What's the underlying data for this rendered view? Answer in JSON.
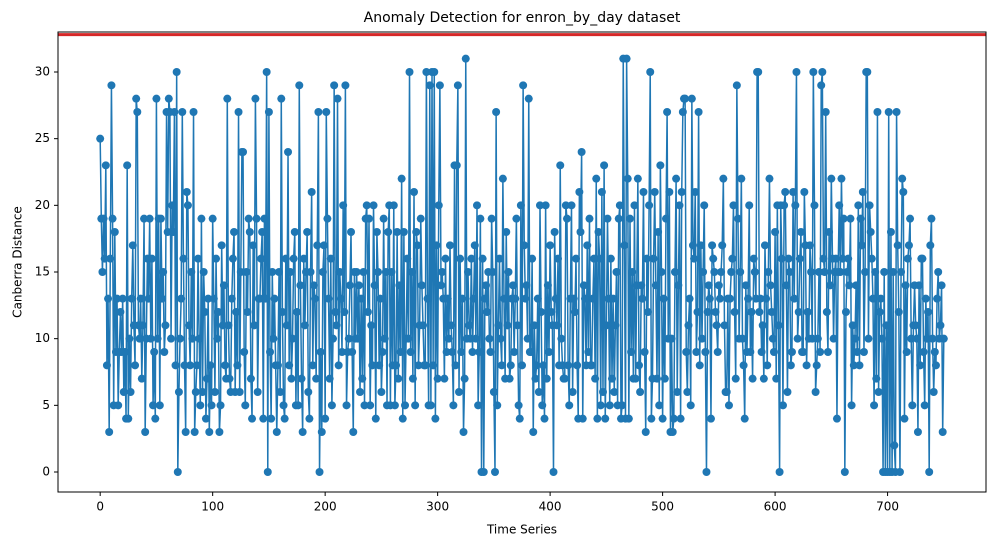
{
  "chart_data": {
    "type": "line",
    "title": "Anomaly Detection for enron_by_day dataset",
    "x_label": "Time Series",
    "y_label": "Canberra Distance",
    "x": [
      0,
      1,
      2,
      3,
      4,
      5,
      6,
      7,
      8,
      9,
      10,
      11,
      12,
      13,
      14,
      15,
      16,
      17,
      18,
      19,
      20,
      21,
      22,
      23,
      24,
      25,
      26,
      27,
      28,
      29,
      30,
      31,
      32,
      33,
      34,
      35,
      36,
      37,
      38,
      39,
      40,
      41,
      42,
      43,
      44,
      45,
      46,
      47,
      48,
      49,
      50,
      51,
      52,
      53,
      54,
      55,
      56,
      57,
      58,
      59,
      60,
      61,
      62,
      63,
      64,
      65,
      66,
      67,
      68,
      69,
      70,
      71,
      72,
      73,
      74,
      75,
      76,
      77,
      78,
      79,
      80,
      81,
      82,
      83,
      84,
      85,
      86,
      87,
      88,
      89,
      90,
      91,
      92,
      93,
      94,
      95,
      96,
      97,
      98,
      99,
      100,
      101,
      102,
      103,
      104,
      105,
      106,
      107,
      108,
      109,
      110,
      111,
      112,
      113,
      114,
      115,
      116,
      117,
      118,
      119,
      120,
      121,
      122,
      123,
      124,
      125,
      126,
      127,
      128,
      129,
      130,
      131,
      132,
      133,
      134,
      135,
      136,
      137,
      138,
      139,
      140,
      141,
      142,
      143,
      144,
      145,
      146,
      147,
      148,
      149,
      150,
      151,
      152,
      153,
      154,
      155,
      156,
      157,
      158,
      159,
      160,
      161,
      162,
      163,
      164,
      165,
      166,
      167,
      168,
      169,
      170,
      171,
      172,
      173,
      174,
      175,
      176,
      177,
      178,
      179,
      180,
      181,
      182,
      183,
      184,
      185,
      186,
      187,
      188,
      189,
      190,
      191,
      192,
      193,
      194,
      195,
      196,
      197,
      198,
      199,
      200,
      201,
      202,
      203,
      204,
      205,
      206,
      207,
      208,
      209,
      210,
      211,
      212,
      213,
      214,
      215,
      216,
      217,
      218,
      219,
      220,
      221,
      222,
      223,
      224,
      225,
      226,
      227,
      228,
      229,
      230,
      231,
      232,
      233,
      234,
      235,
      236,
      237,
      238,
      239,
      240,
      241,
      242,
      243,
      244,
      245,
      246,
      247,
      248,
      249,
      250,
      251,
      252,
      253,
      254,
      255,
      256,
      257,
      258,
      259,
      260,
      261,
      262,
      263,
      264,
      265,
      266,
      267,
      268,
      269,
      270,
      271,
      272,
      273,
      274,
      275,
      276,
      277,
      278,
      279,
      280,
      281,
      282,
      283,
      284,
      285,
      286,
      287,
      288,
      289,
      290,
      291,
      292,
      293,
      294,
      295,
      296,
      297,
      298,
      299,
      300,
      301,
      302,
      303,
      304,
      305,
      306,
      307,
      308,
      309,
      310,
      311,
      312,
      313,
      314,
      315,
      316,
      317,
      318,
      319,
      320,
      321,
      322,
      323,
      324,
      325,
      326,
      327,
      328,
      329,
      330,
      331,
      332,
      333,
      334,
      335,
      336,
      337,
      338,
      339,
      340,
      341,
      342,
      343,
      344,
      345,
      346,
      347,
      348,
      349,
      350,
      351,
      352,
      353,
      354,
      355,
      356,
      357,
      358,
      359,
      360,
      361,
      362,
      363,
      364,
      365,
      366,
      367,
      368,
      369,
      370,
      371,
      372,
      373,
      374,
      375,
      376,
      377,
      378,
      379,
      380,
      381,
      382,
      383,
      384,
      385,
      386,
      387,
      388,
      389,
      390,
      391,
      392,
      393,
      394,
      395,
      396,
      397,
      398,
      399,
      400,
      401,
      402,
      403,
      404,
      405,
      406,
      407,
      408,
      409,
      410,
      411,
      412,
      413,
      414,
      415,
      416,
      417,
      418,
      419,
      420,
      421,
      422,
      423,
      424,
      425,
      426,
      427,
      428,
      429,
      430,
      431,
      432,
      433,
      434,
      435,
      436,
      437,
      438,
      439,
      440,
      441,
      442,
      443,
      444,
      445,
      446,
      447,
      448,
      449,
      450,
      451,
      452,
      453,
      454,
      455,
      456,
      457,
      458,
      459,
      460,
      461,
      462,
      463,
      464,
      465,
      466,
      467,
      468,
      469,
      470,
      471,
      472,
      473,
      474,
      475,
      476,
      477,
      478,
      479,
      480,
      481,
      482,
      483,
      484,
      485,
      486,
      487,
      488,
      489,
      490,
      491,
      492,
      493,
      494,
      495,
      496,
      497,
      498,
      499,
      500,
      501,
      502,
      503,
      504,
      505,
      506,
      507,
      508,
      509,
      510,
      511,
      512,
      513,
      514,
      515,
      516,
      517,
      518,
      519,
      520,
      521,
      522,
      523,
      524,
      525,
      526,
      527,
      528,
      529,
      530,
      531,
      532,
      533,
      534,
      535,
      536,
      537,
      538,
      539,
      540,
      541,
      542,
      543,
      544,
      545,
      546,
      547,
      548,
      549,
      550,
      551,
      552,
      553,
      554,
      555,
      556,
      557,
      558,
      559,
      560,
      561,
      562,
      563,
      564,
      565,
      566,
      567,
      568,
      569,
      570,
      571,
      572,
      573,
      574,
      575,
      576,
      577,
      578,
      579,
      580,
      581,
      582,
      583,
      584,
      585,
      586,
      587,
      588,
      589,
      590,
      591,
      592,
      593,
      594,
      595,
      596,
      597,
      598,
      599,
      600,
      601,
      602,
      603,
      604,
      605,
      606,
      607,
      608,
      609,
      610,
      611,
      612,
      613,
      614,
      615,
      616,
      617,
      618,
      619,
      620,
      621,
      622,
      623,
      624,
      625,
      626,
      627,
      628,
      629,
      630,
      631,
      632,
      633,
      634,
      635,
      636,
      637,
      638,
      639,
      640,
      641,
      642,
      643,
      644,
      645,
      646,
      647,
      648,
      649,
      650,
      651,
      652,
      653,
      654,
      655,
      656,
      657,
      658,
      659,
      660,
      661,
      662,
      663,
      664,
      665,
      666,
      667,
      668,
      669,
      670,
      671,
      672,
      673,
      674,
      675,
      676,
      677,
      678,
      679,
      680,
      681,
      682,
      683,
      684,
      685,
      686,
      687,
      688,
      689,
      690,
      691,
      692,
      693,
      694,
      695,
      696,
      697,
      698,
      699,
      700,
      701,
      702,
      703,
      704,
      705,
      706,
      707,
      708,
      709,
      710,
      711,
      712,
      713,
      714,
      715,
      716,
      717,
      718,
      719,
      720,
      721,
      722,
      723,
      724,
      725,
      726,
      727,
      728,
      729,
      730,
      731,
      732,
      733,
      734,
      735,
      736,
      737,
      738,
      739,
      740,
      741,
      742,
      743,
      744,
      745,
      746,
      747,
      748,
      749,
      750
    ],
    "series": [
      {
        "color": "#1f77b4",
        "values": [
          25,
          19,
          15,
          19,
          16,
          23,
          8,
          13,
          3,
          16,
          29,
          19,
          5,
          18,
          9,
          13,
          5,
          9,
          12,
          9,
          13,
          6,
          9,
          4,
          23,
          4,
          10,
          6,
          13,
          17,
          11,
          8,
          28,
          27,
          11,
          10,
          13,
          7,
          11,
          19,
          3,
          10,
          16,
          13,
          19,
          10,
          16,
          5,
          9,
          4,
          28,
          10,
          19,
          5,
          19,
          13,
          15,
          9,
          11,
          27,
          18,
          28,
          27,
          10,
          20,
          18,
          27,
          8,
          30,
          0,
          6,
          10,
          13,
          27,
          16,
          8,
          3,
          21,
          20,
          11,
          8,
          15,
          10,
          27,
          3,
          6,
          8,
          16,
          10,
          5,
          19,
          6,
          15,
          12,
          4,
          7,
          13,
          3,
          8,
          5,
          19,
          13,
          6,
          16,
          10,
          12,
          3,
          5,
          17,
          11,
          14,
          8,
          7,
          28,
          11,
          7,
          6,
          13,
          16,
          18,
          6,
          12,
          8,
          27,
          6,
          15,
          24,
          24,
          9,
          5,
          15,
          12,
          19,
          18,
          7,
          4,
          17,
          11,
          28,
          19,
          6,
          13,
          13,
          16,
          18,
          4,
          19,
          13,
          30,
          0,
          27,
          9,
          4,
          15,
          10,
          13,
          8,
          3,
          8,
          15,
          6,
          28,
          12,
          5,
          4,
          16,
          11,
          24,
          8,
          15,
          7,
          10,
          16,
          18,
          5,
          12,
          5,
          29,
          14,
          7,
          3,
          16,
          11,
          15,
          18,
          6,
          4,
          15,
          21,
          8,
          14,
          13,
          7,
          17,
          27,
          0,
          9,
          3,
          15,
          17,
          4,
          27,
          19,
          13,
          7,
          16,
          5,
          10,
          29,
          12,
          11,
          28,
          8,
          15,
          13,
          9,
          20,
          12,
          29,
          5,
          9,
          10,
          14,
          18,
          9,
          3,
          15,
          10,
          15,
          10,
          14,
          6,
          13,
          7,
          15,
          5,
          19,
          20,
          12,
          19,
          5,
          11,
          8,
          20,
          14,
          4,
          18,
          15,
          8,
          13,
          6,
          9,
          19,
          10,
          15,
          5,
          18,
          20,
          5,
          15,
          8,
          20,
          5,
          8,
          18,
          7,
          14,
          9,
          22,
          4,
          18,
          5,
          10,
          16,
          10,
          30,
          9,
          15,
          7,
          21,
          5,
          18,
          17,
          8,
          11,
          19,
          14,
          11,
          8,
          8,
          30,
          13,
          5,
          29,
          5,
          30,
          8,
          30,
          4,
          17,
          7,
          20,
          29,
          14,
          15,
          13,
          7,
          16,
          9,
          13,
          10,
          17,
          11,
          9,
          5,
          23,
          8,
          23,
          29,
          6,
          16,
          9,
          13,
          3,
          7,
          31,
          10,
          15,
          11,
          10,
          16,
          9,
          13,
          17,
          10,
          20,
          5,
          9,
          19,
          0,
          16,
          0,
          13,
          14,
          12,
          15,
          10,
          9,
          19,
          15,
          6,
          0,
          27,
          5,
          11,
          16,
          10,
          8,
          22,
          13,
          7,
          18,
          11,
          15,
          7,
          8,
          13,
          14,
          9,
          13,
          19,
          11,
          5,
          4,
          20,
          8,
          29,
          17,
          13,
          14,
          10,
          28,
          9,
          9,
          16,
          3,
          11,
          7,
          8,
          13,
          6,
          20,
          12,
          5,
          8,
          4,
          20,
          7,
          14,
          9,
          17,
          12,
          11,
          0,
          18,
          13,
          11,
          16,
          8,
          23,
          10,
          8,
          7,
          7,
          20,
          19,
          8,
          5,
          13,
          20,
          6,
          13,
          12,
          16,
          8,
          4,
          21,
          18,
          24,
          4,
          14,
          13,
          8,
          17,
          9,
          19,
          8,
          8,
          13,
          16,
          7,
          22,
          4,
          18,
          16,
          5,
          21,
          6,
          23,
          4,
          11,
          19,
          13,
          5,
          16,
          7,
          13,
          6,
          11,
          15,
          5,
          19,
          20,
          4,
          5,
          31,
          17,
          4,
          31,
          22,
          4,
          19,
          9,
          15,
          7,
          20,
          7,
          14,
          22,
          8,
          6,
          14,
          13,
          21,
          9,
          3,
          16,
          12,
          20,
          30,
          4,
          7,
          16,
          21,
          14,
          7,
          18,
          5,
          23,
          15,
          4,
          13,
          7,
          19,
          27,
          10,
          21,
          3,
          10,
          3,
          4,
          15,
          22,
          6,
          14,
          20,
          4,
          21,
          27,
          28,
          28,
          9,
          6,
          11,
          13,
          5,
          28,
          17,
          16,
          21,
          9,
          12,
          27,
          8,
          17,
          10,
          15,
          20,
          9,
          0,
          12,
          14,
          13,
          4,
          17,
          16,
          15,
          12,
          11,
          9,
          14,
          13,
          15,
          17,
          22,
          11,
          6,
          6,
          13,
          5,
          13,
          15,
          16,
          20,
          12,
          7,
          29,
          19,
          10,
          15,
          22,
          10,
          8,
          4,
          14,
          9,
          13,
          20,
          9,
          12,
          7,
          16,
          15,
          13,
          30,
          30,
          12,
          13,
          9,
          11,
          7,
          17,
          13,
          8,
          15,
          22,
          14,
          12,
          10,
          9,
          18,
          7,
          20,
          11,
          0,
          20,
          16,
          5,
          20,
          21,
          14,
          6,
          16,
          15,
          8,
          9,
          21,
          13,
          20,
          30,
          10,
          12,
          16,
          18,
          9,
          9,
          21,
          17,
          8,
          12,
          10,
          17,
          15,
          10,
          30,
          20,
          6,
          8,
          10,
          15,
          9,
          29,
          30,
          16,
          15,
          27,
          12,
          9,
          18,
          14,
          22,
          16,
          10,
          15,
          16,
          4,
          15,
          20,
          15,
          22,
          16,
          19,
          0,
          12,
          15,
          16,
          14,
          19,
          5,
          11,
          8,
          10,
          14,
          9,
          20,
          8,
          19,
          17,
          21,
          9,
          15,
          30,
          30,
          10,
          20,
          18,
          16,
          13,
          5,
          15,
          7,
          27,
          6,
          12,
          13,
          10,
          0,
          15,
          0,
          11,
          0,
          27,
          0,
          18,
          0,
          15,
          2,
          0,
          27,
          17,
          12,
          0,
          15,
          22,
          21,
          4,
          14,
          9,
          16,
          17,
          19,
          10,
          5,
          11,
          14,
          11,
          10,
          3,
          14,
          8,
          16,
          16,
          9,
          5,
          13,
          10,
          12,
          0,
          17,
          19,
          10,
          6,
          9,
          8,
          13,
          15,
          10,
          11,
          14,
          3,
          10
        ]
      }
    ],
    "hline": {
      "value": 32.8,
      "color": "#d62728"
    },
    "xlim": [
      -37.5,
      787.5
    ],
    "xticks": [
      0,
      100,
      200,
      300,
      400,
      500,
      600,
      700
    ],
    "ylim": [
      -1.5,
      33
    ],
    "yticks": [
      0,
      5,
      10,
      15,
      20,
      25,
      30
    ]
  }
}
